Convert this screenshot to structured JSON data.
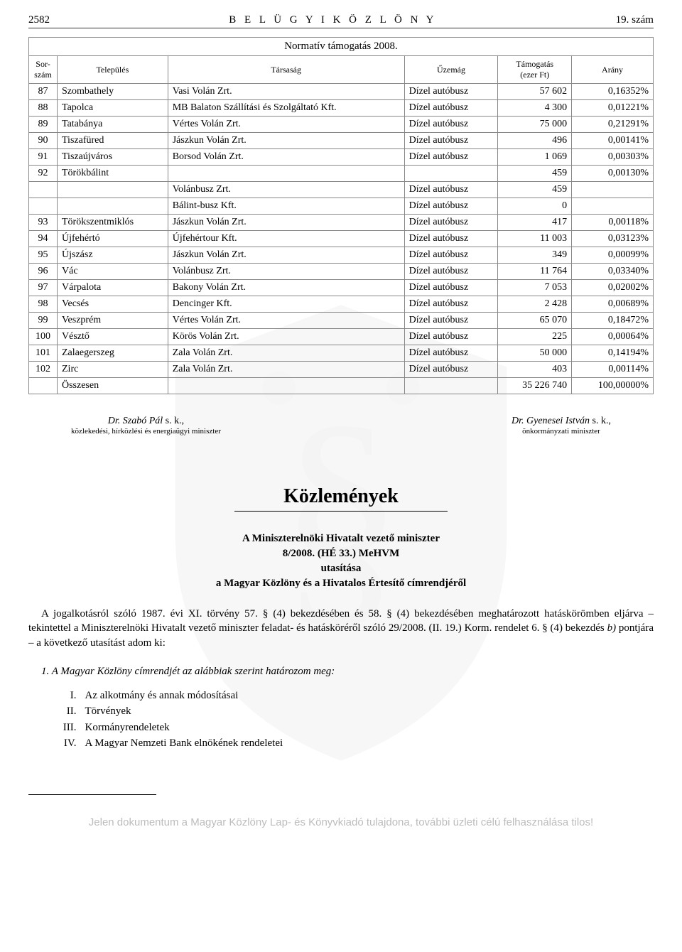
{
  "header": {
    "page_number": "2582",
    "title": "B E L Ü G Y I   K Ö Z L Ö N Y",
    "issue": "19. szám"
  },
  "table": {
    "caption": "Normatív támogatás 2008.",
    "columns": {
      "idx": "Sor-\nszám",
      "town": "Település",
      "company": "Társaság",
      "branch": "Űzemág",
      "support": "Támogatás\n(ezer Ft)",
      "ratio": "Arány"
    },
    "rows": [
      {
        "idx": "87",
        "town": "Szombathely",
        "company": "Vasi Volán Zrt.",
        "branch": "Dízel autóbusz",
        "support": "57 602",
        "ratio": "0,16352%"
      },
      {
        "idx": "88",
        "town": "Tapolca",
        "company": "MB Balaton Szállítási és Szolgáltató Kft.",
        "branch": "Dízel autóbusz",
        "support": "4 300",
        "ratio": "0,01221%"
      },
      {
        "idx": "89",
        "town": "Tatabánya",
        "company": "Vértes Volán Zrt.",
        "branch": "Dízel autóbusz",
        "support": "75 000",
        "ratio": "0,21291%"
      },
      {
        "idx": "90",
        "town": "Tiszafüred",
        "company": "Jászkun Volán Zrt.",
        "branch": "Dízel autóbusz",
        "support": "496",
        "ratio": "0,00141%"
      },
      {
        "idx": "91",
        "town": "Tiszaújváros",
        "company": "Borsod Volán Zrt.",
        "branch": "Dízel autóbusz",
        "support": "1 069",
        "ratio": "0,00303%"
      },
      {
        "idx": "92",
        "town": "Törökbálint",
        "company": "",
        "branch": "",
        "support": "459",
        "ratio": "0,00130%",
        "group_head": true
      },
      {
        "idx": "",
        "town": "",
        "company": "Volánbusz Zrt.",
        "branch": "Dízel autóbusz",
        "support": "459",
        "ratio": "",
        "sub": true
      },
      {
        "idx": "",
        "town": "",
        "company": "Bálint-busz Kft.",
        "branch": "Dízel autóbusz",
        "support": "0",
        "ratio": "",
        "sub": true
      },
      {
        "idx": "93",
        "town": "Törökszentmiklós",
        "company": "Jászkun Volán Zrt.",
        "branch": "Dízel autóbusz",
        "support": "417",
        "ratio": "0,00118%"
      },
      {
        "idx": "94",
        "town": "Újfehértó",
        "company": "Újfehértour Kft.",
        "branch": "Dízel autóbusz",
        "support": "11 003",
        "ratio": "0,03123%"
      },
      {
        "idx": "95",
        "town": "Újszász",
        "company": "Jászkun Volán Zrt.",
        "branch": "Dízel autóbusz",
        "support": "349",
        "ratio": "0,00099%"
      },
      {
        "idx": "96",
        "town": "Vác",
        "company": "Volánbusz Zrt.",
        "branch": "Dízel autóbusz",
        "support": "11 764",
        "ratio": "0,03340%"
      },
      {
        "idx": "97",
        "town": "Várpalota",
        "company": "Bakony Volán Zrt.",
        "branch": "Dízel autóbusz",
        "support": "7 053",
        "ratio": "0,02002%"
      },
      {
        "idx": "98",
        "town": "Vecsés",
        "company": "Dencinger Kft.",
        "branch": "Dízel autóbusz",
        "support": "2 428",
        "ratio": "0,00689%"
      },
      {
        "idx": "99",
        "town": "Veszprém",
        "company": "Vértes Volán Zrt.",
        "branch": "Dízel autóbusz",
        "support": "65 070",
        "ratio": "0,18472%"
      },
      {
        "idx": "100",
        "town": "Vésztő",
        "company": "Körös Volán Zrt.",
        "branch": "Dízel autóbusz",
        "support": "225",
        "ratio": "0,00064%"
      },
      {
        "idx": "101",
        "town": "Zalaegerszeg",
        "company": "Zala Volán Zrt.",
        "branch": "Dízel autóbusz",
        "support": "50 000",
        "ratio": "0,14194%"
      },
      {
        "idx": "102",
        "town": "Zirc",
        "company": "Zala Volán Zrt.",
        "branch": "Dízel autóbusz",
        "support": "403",
        "ratio": "0,00114%"
      }
    ],
    "total": {
      "label": "Összesen",
      "support": "35 226 740",
      "ratio": "100,00000%"
    }
  },
  "signatures": {
    "left": {
      "name": "Dr. Szabó Pál",
      "suffix": " s. k.,",
      "title": "közlekedési, hírközlési és energiaügyi miniszter"
    },
    "right": {
      "name": "Dr. Gyenesei István",
      "suffix": " s. k.,",
      "title": "önkormányzati miniszter"
    }
  },
  "section": {
    "title": "Közlemények",
    "subheader_lines": [
      "A Miniszterelnöki Hivatalt vezető miniszter",
      "8/2008. (HÉ 33.) MeHVM",
      "utasítása",
      "a Magyar Közlöny és a Hivatalos Értesítő címrendjéről"
    ],
    "paragraph": "A jogalkotásról szóló 1987. évi XI. törvény 57. § (4) bekezdésében és 58. § (4) bekezdésében meghatározott hatáskörömben eljárva – tekintettel a Miniszterelnöki Hivatalt vezető miniszter feladat- és hatásköréről szóló 29/2008. (II. 19.) Korm. rendelet 6. § (4) bekezdés b) pontjára – a következő utasítást adom ki:",
    "italic_line": "1. A Magyar Közlöny címrendjét az alábbiak szerint határozom meg:",
    "list": [
      {
        "rn": "I.",
        "text": "Az alkotmány és annak módosításai"
      },
      {
        "rn": "II.",
        "text": "Törvények"
      },
      {
        "rn": "III.",
        "text": "Kormányrendeletek"
      },
      {
        "rn": "IV.",
        "text": "A Magyar Nemzeti Bank elnökének rendeletei"
      }
    ]
  },
  "footer": {
    "disclaimer": "Jelen dokumentum a Magyar Közlöny Lap- és Könyvkiadó tulajdona, további üzleti célú felhasználása tilos!"
  }
}
